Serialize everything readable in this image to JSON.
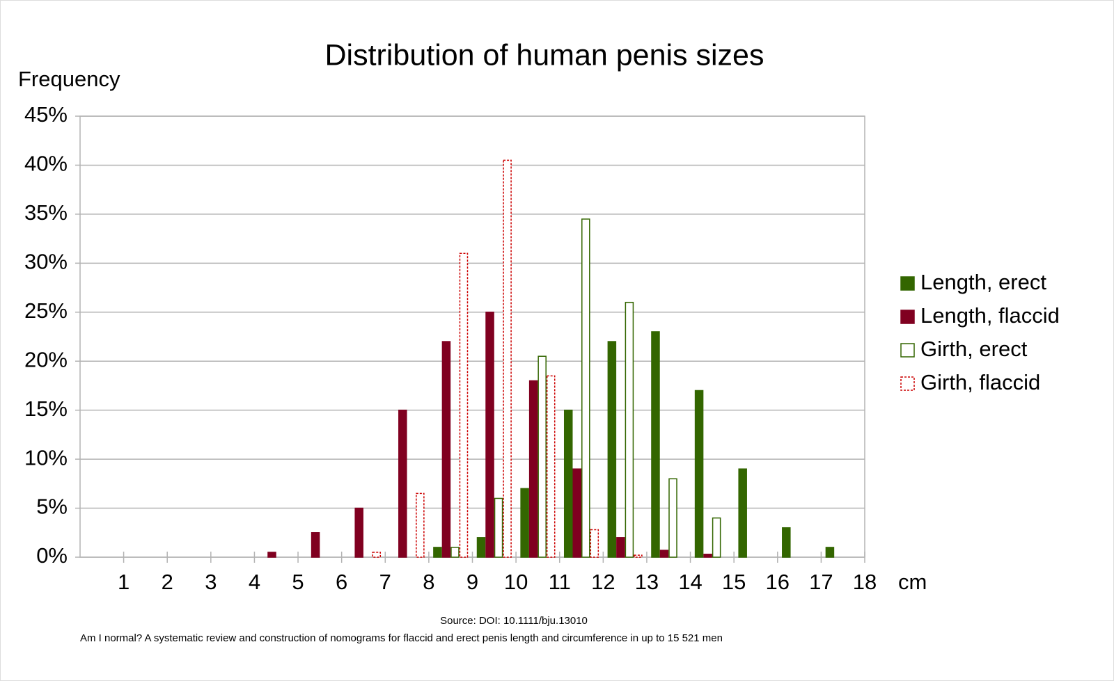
{
  "chart_data": {
    "type": "histogram",
    "title": "Distribution of human penis sizes",
    "y_label": "Frequency",
    "x_label": "cm",
    "source": "Source: DOI: 10.1111/bju.13010",
    "note": "Am I normal? A systematic review and construction of nomograms for flaccid and erect penis length and circumference in up to 15 521 men",
    "bins": [
      0,
      1,
      2,
      3,
      4,
      5,
      6,
      7,
      8,
      9,
      10,
      11,
      12,
      13,
      14,
      15,
      16,
      17,
      18
    ],
    "series": [
      {
        "name": "Length, erect",
        "color": "#336600",
        "filled": true,
        "dashed": false,
        "values": [
          0,
          0,
          0,
          0,
          0,
          0,
          0,
          0,
          1,
          2,
          7,
          15,
          22,
          23,
          17,
          9,
          3,
          1
        ]
      },
      {
        "name": "Length, flaccid",
        "color": "#800020",
        "filled": true,
        "dashed": false,
        "values": [
          0,
          0,
          0,
          0,
          0.5,
          2.5,
          5,
          15,
          22,
          25,
          18,
          9,
          2,
          0.7,
          0.3,
          0,
          0,
          0
        ]
      },
      {
        "name": "Girth, erect",
        "color": "#336600",
        "filled": false,
        "dashed": false,
        "values": [
          0,
          0,
          0,
          0,
          0,
          0,
          0,
          0,
          1,
          6,
          20.5,
          34.5,
          26,
          8,
          4,
          0,
          0,
          0
        ]
      },
      {
        "name": "Girth, flaccid",
        "color": "#cc0000",
        "filled": false,
        "dashed": true,
        "values": [
          0,
          0,
          0,
          0,
          0,
          0,
          0.5,
          6.5,
          31,
          40.5,
          18.5,
          2.8,
          0.2,
          0,
          0,
          0,
          0,
          0
        ]
      }
    ],
    "xlim": [
      0,
      18
    ],
    "xticks": [
      1,
      2,
      3,
      4,
      5,
      6,
      7,
      8,
      9,
      10,
      11,
      12,
      13,
      14,
      15,
      16,
      17,
      18
    ],
    "ylim": [
      0,
      45
    ],
    "yticks": [
      {
        "value": 0,
        "label": "0%"
      },
      {
        "value": 5,
        "label": "5%"
      },
      {
        "value": 10,
        "label": "10%"
      },
      {
        "value": 15,
        "label": "15%"
      },
      {
        "value": 20,
        "label": "20%"
      },
      {
        "value": 25,
        "label": "25%"
      },
      {
        "value": 30,
        "label": "30%"
      },
      {
        "value": 35,
        "label": "35%"
      },
      {
        "value": 40,
        "label": "40%"
      },
      {
        "value": 45,
        "label": "45%"
      }
    ],
    "grid": true,
    "legend": "right"
  }
}
